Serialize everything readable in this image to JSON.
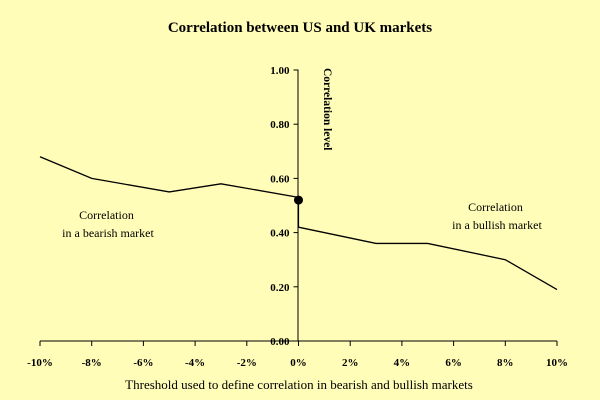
{
  "chart_data": {
    "type": "line",
    "title": "Correlation between US and UK markets",
    "xlabel": "Threshold used to define correlation in bearish and bullish markets",
    "ylabel": "Correlation level",
    "xlim": [
      -10,
      10
    ],
    "ylim": [
      0,
      1
    ],
    "x_ticks": [
      -10,
      -8,
      -6,
      -4,
      -2,
      0,
      2,
      4,
      6,
      8,
      10
    ],
    "x_tick_labels": [
      "-10%",
      "-8%",
      "-6%",
      "-4%",
      "-2%",
      "0%",
      "2%",
      "4%",
      "6%",
      "8%",
      "10%"
    ],
    "y_ticks": [
      0,
      0.2,
      0.4,
      0.6,
      0.8,
      1.0
    ],
    "y_tick_labels": [
      "0.00",
      "0.20",
      "0.40",
      "0.60",
      "0.80",
      "1.00"
    ],
    "grid": false,
    "series": [
      {
        "name": "Correlation in a bearish market",
        "x": [
          -10,
          -8,
          -5,
          -3,
          0
        ],
        "y": [
          0.68,
          0.6,
          0.55,
          0.58,
          0.53
        ]
      },
      {
        "name": "Correlation in a bullish market",
        "x": [
          0,
          3,
          5,
          8,
          10
        ],
        "y": [
          0.42,
          0.36,
          0.36,
          0.3,
          0.19
        ]
      }
    ],
    "marker": {
      "x": 0,
      "y": 0.52
    },
    "annotations": [
      {
        "lines": [
          "Correlation",
          "in a bearish market"
        ]
      },
      {
        "lines": [
          "Correlation",
          "in a bullish market"
        ]
      }
    ]
  }
}
